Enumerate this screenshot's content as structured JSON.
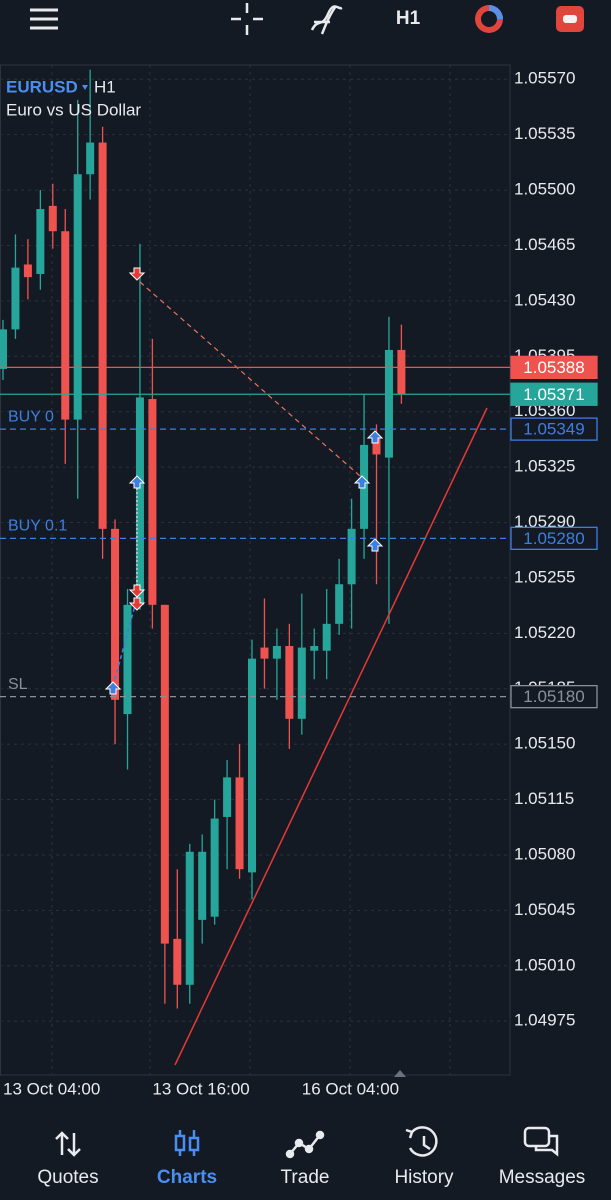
{
  "toolbar": {
    "timeframe": "H1"
  },
  "chart_data": {
    "type": "candlestick",
    "symbol": "EURUSD",
    "timeframe": "H1",
    "description": "Euro vs US Dollar",
    "up_color": "#26a69a",
    "down_color": "#ef5350",
    "categories": [
      "13 Oct 04:00",
      null,
      null,
      null,
      null,
      null,
      null,
      null,
      null,
      null,
      null,
      null,
      "13 Oct 16:00",
      null,
      null,
      null,
      null,
      null,
      null,
      null,
      null,
      null,
      null,
      null,
      "16 Oct 04:00",
      null,
      null,
      null,
      null,
      null,
      null,
      null,
      null
    ],
    "open": [
      1.05387,
      1.05412,
      1.05453,
      1.05447,
      1.0549,
      1.05474,
      1.05355,
      1.0551,
      1.0553,
      1.05286,
      1.05169,
      1.05238,
      1.05368,
      1.05238,
      1.05027,
      1.04998,
      1.05039,
      1.05041,
      1.05104,
      1.05129,
      1.05069,
      1.05211,
      1.05204,
      1.05212,
      1.05166,
      1.05209,
      1.05209,
      1.05226,
      1.05251,
      1.05286,
      1.05343,
      1.05331,
      1.05399
    ],
    "high": [
      1.05418,
      1.05472,
      1.05469,
      1.055,
      1.05504,
      1.05488,
      1.05557,
      1.05576,
      1.0554,
      1.05292,
      1.05248,
      1.05466,
      1.05406,
      1.05238,
      1.05071,
      1.05087,
      1.05093,
      1.05115,
      1.0514,
      1.0515,
      1.05216,
      1.05242,
      1.05223,
      1.05226,
      1.05245,
      1.05223,
      1.05248,
      1.05267,
      1.05305,
      1.05371,
      1.05352,
      1.0542,
      1.05415
    ],
    "low": [
      1.0538,
      1.05406,
      1.05431,
      1.05437,
      1.05463,
      1.05327,
      1.05305,
      1.05494,
      1.05267,
      1.0515,
      1.05134,
      1.05235,
      1.05223,
      1.04986,
      1.04983,
      1.04986,
      1.05024,
      1.05036,
      1.05071,
      1.05065,
      1.05052,
      1.05185,
      1.05178,
      1.05147,
      1.05156,
      1.05191,
      1.05191,
      1.05219,
      1.05223,
      1.05267,
      1.05251,
      1.05226,
      1.05365
    ],
    "close": [
      1.05412,
      1.05451,
      1.05445,
      1.05488,
      1.05474,
      1.05355,
      1.0551,
      1.0553,
      1.05286,
      1.05178,
      1.05238,
      1.05369,
      1.05238,
      1.05024,
      1.04998,
      1.05082,
      1.05082,
      1.05103,
      1.05129,
      1.05071,
      1.05204,
      1.05204,
      1.05212,
      1.05166,
      1.05211,
      1.05212,
      1.05226,
      1.05251,
      1.05286,
      1.05339,
      1.05333,
      1.05399,
      1.05371
    ],
    "ylim": [
      1.04941,
      1.05579
    ],
    "yticks": [
      {
        "value": 1.0557,
        "label": "1.05570"
      },
      1.05535,
      {
        "value": 1.055,
        "label": "1.05500"
      },
      1.05465,
      {
        "value": 1.0543,
        "label": "1.05430"
      },
      1.05395,
      {
        "value": 1.0536,
        "label": "1.05360"
      },
      1.05325,
      {
        "value": 1.0529,
        "label": "1.05290"
      },
      1.05255,
      {
        "value": 1.0522,
        "label": "1.05220"
      },
      1.05185,
      {
        "value": 1.0515,
        "label": "1.05150"
      },
      1.05115,
      {
        "value": 1.0508,
        "label": "1.05080"
      },
      1.05045,
      {
        "value": 1.0501,
        "label": "1.05010"
      },
      1.04975
    ],
    "grid": true,
    "levels": [
      {
        "value": 1.05388,
        "color": "#ef5350",
        "style": "solid"
      },
      {
        "value": 1.05371,
        "color": "#26a69a",
        "style": "solid"
      },
      {
        "name": "BUY 0",
        "value": 1.05349,
        "color": "#3d7fe0",
        "style": "dashed"
      },
      {
        "name": "BUY 0.1",
        "value": 1.0528,
        "label": "1.05280",
        "color": "#3d7fe0",
        "style": "dashed"
      },
      {
        "name": "SL",
        "value": 1.0518,
        "label": "1.05180",
        "color": "#8a8f99",
        "style": "dashed"
      }
    ]
  },
  "tabs": [
    {
      "label": "Quotes"
    },
    {
      "label": "Charts",
      "active": true
    },
    {
      "label": "Trade"
    },
    {
      "label": "History"
    },
    {
      "label": "Messages"
    }
  ]
}
